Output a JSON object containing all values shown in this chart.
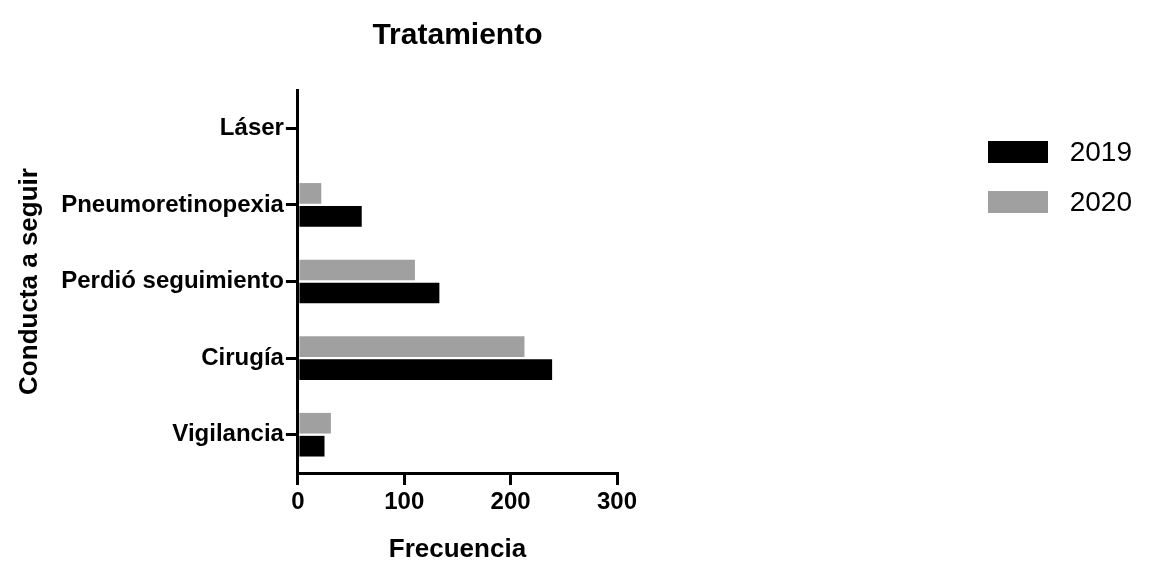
{
  "chart_data": {
    "type": "bar",
    "orientation": "horizontal",
    "title": "Tratamiento",
    "xlabel": "Frecuencia",
    "ylabel": "Conducta a seguir",
    "categories": [
      "Láser",
      "Pneumoretinopexia",
      "Perdió seguimiento",
      "Cirugía",
      "Vigilancia"
    ],
    "series": [
      {
        "name": "2019",
        "color": "#000000",
        "values": [
          0,
          60,
          133,
          239,
          25
        ]
      },
      {
        "name": "2020",
        "color": "#a0a0a0",
        "values": [
          0,
          22,
          110,
          213,
          31
        ]
      }
    ],
    "xlim": [
      0,
      300
    ],
    "xticks": [
      0,
      100,
      200,
      300
    ],
    "grid": false,
    "legend": "top right"
  }
}
